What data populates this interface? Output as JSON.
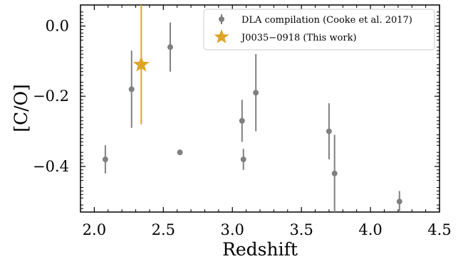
{
  "chart_data": {
    "type": "scatter",
    "xlabel": "Redshift",
    "ylabel": "[C/O]",
    "xlim": [
      1.9,
      4.5
    ],
    "ylim": [
      -0.53,
      0.06
    ],
    "x_ticks": [
      "2.0",
      "2.5",
      "3.0",
      "3.5",
      "4.0",
      "4.5"
    ],
    "y_ticks": [
      "0.0",
      "−0.2",
      "−0.4"
    ],
    "x_tick_values": [
      2.0,
      2.5,
      3.0,
      3.5,
      4.0,
      4.5
    ],
    "y_tick_values": [
      0.0,
      -0.2,
      -0.4
    ],
    "grid": false,
    "legend_position": "top-right",
    "series": [
      {
        "name": "DLA compilation (Cooke et al. 2017)",
        "marker": "circle",
        "color": "#808080",
        "points": [
          {
            "x": 2.08,
            "y": -0.38,
            "yerr_low": 0.04,
            "yerr_high": 0.04
          },
          {
            "x": 2.27,
            "y": -0.18,
            "yerr_low": 0.11,
            "yerr_high": 0.11
          },
          {
            "x": 2.55,
            "y": -0.06,
            "yerr_low": 0.07,
            "yerr_high": 0.07
          },
          {
            "x": 2.62,
            "y": -0.36,
            "yerr_low": 0.0,
            "yerr_high": 0.0
          },
          {
            "x": 3.07,
            "y": -0.27,
            "yerr_low": 0.06,
            "yerr_high": 0.06
          },
          {
            "x": 3.08,
            "y": -0.38,
            "yerr_low": 0.03,
            "yerr_high": 0.03
          },
          {
            "x": 3.17,
            "y": -0.19,
            "yerr_low": 0.11,
            "yerr_high": 0.11
          },
          {
            "x": 3.7,
            "y": -0.3,
            "yerr_low": 0.08,
            "yerr_high": 0.08
          },
          {
            "x": 3.74,
            "y": -0.42,
            "yerr_low": 0.13,
            "yerr_high": 0.11
          },
          {
            "x": 4.21,
            "y": -0.5,
            "yerr_low": 0.05,
            "yerr_high": 0.03
          }
        ]
      },
      {
        "name": "J0035−0918 (This work)",
        "marker": "star",
        "color": "#e0a424",
        "points": [
          {
            "x": 2.34,
            "y": -0.11,
            "yerr_low": 0.17,
            "yerr_high": 0.2
          }
        ]
      }
    ]
  }
}
